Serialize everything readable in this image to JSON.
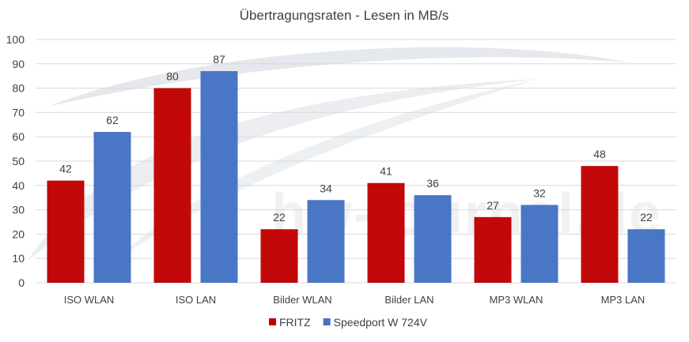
{
  "chart_data": {
    "type": "bar",
    "title": "Übertragungsraten - Lesen in MB/s",
    "xlabel": "",
    "ylabel": "",
    "ylim": [
      0,
      100
    ],
    "yticks": [
      0,
      10,
      20,
      30,
      40,
      50,
      60,
      70,
      80,
      90,
      100
    ],
    "grid": true,
    "legend_position": "bottom",
    "categories": [
      "ISO WLAN",
      "ISO LAN",
      "Bilder WLAN",
      "Bilder LAN",
      "MP3 WLAN",
      "MP3 LAN"
    ],
    "series": [
      {
        "name": "FRITZ",
        "color": "#c00000",
        "values": [
          42,
          80,
          22,
          41,
          27,
          48
        ]
      },
      {
        "name": "Speedport W 724V",
        "color": "#4472c4",
        "values": [
          62,
          87,
          34,
          36,
          32,
          22
        ]
      }
    ],
    "watermark": "hw-journal.de"
  }
}
